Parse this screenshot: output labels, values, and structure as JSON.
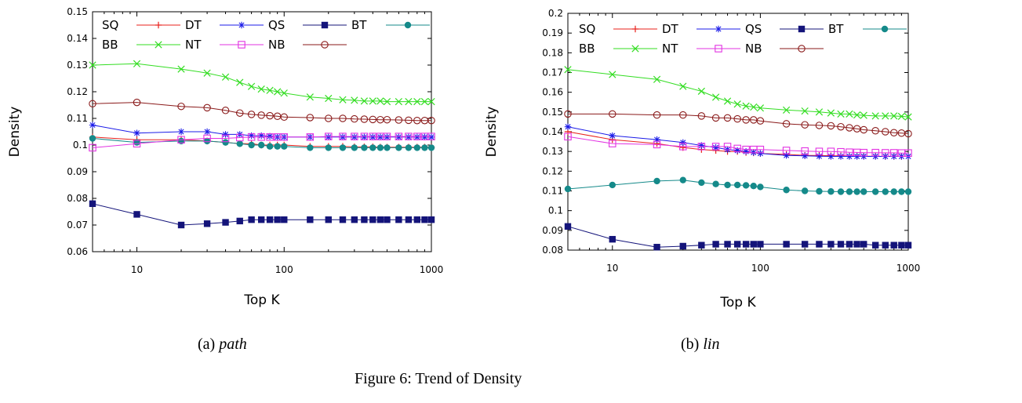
{
  "figure_caption": "Figure 6: Trend of Density",
  "chart_data": [
    {
      "type": "line",
      "subcaption_label": "(a)",
      "subcaption_name": "path",
      "xlabel": "Top K",
      "ylabel": "Density",
      "xscale": "log",
      "xlim": [
        5,
        1000
      ],
      "ylim": [
        0.06,
        0.15
      ],
      "xticks": [
        10,
        100,
        1000
      ],
      "xtick_labels": [
        "10",
        "100",
        "1000"
      ],
      "yticks": [
        0.06,
        0.07,
        0.08,
        0.09,
        0.1,
        0.11,
        0.12,
        0.13,
        0.14,
        0.15
      ],
      "ytick_labels": [
        "0.06",
        "0.07",
        "0.08",
        "0.09",
        "0.1",
        "0.11",
        "0.12",
        "0.13",
        "0.14",
        "0.15"
      ],
      "legend_position": "top",
      "x": [
        5,
        10,
        20,
        30,
        40,
        50,
        60,
        70,
        80,
        90,
        100,
        150,
        200,
        250,
        300,
        350,
        400,
        450,
        500,
        600,
        700,
        800,
        900,
        1000
      ],
      "series": [
        {
          "name": "SQ",
          "color": "#e8201b",
          "marker": "plus",
          "values": [
            0.103,
            0.102,
            0.102,
            0.1015,
            0.101,
            0.1005,
            0.1005,
            0.1,
            0.1,
            0.1,
            0.1,
            0.0995,
            0.0995,
            0.0995,
            0.0993,
            0.0993,
            0.0993,
            0.0992,
            0.0992,
            0.0992,
            0.0992,
            0.0992,
            0.0992,
            0.0992
          ]
        },
        {
          "name": "DT",
          "color": "#1b1be8",
          "marker": "star",
          "values": [
            0.1075,
            0.1045,
            0.105,
            0.105,
            0.104,
            0.104,
            0.1035,
            0.1035,
            0.1033,
            0.103,
            0.103,
            0.103,
            0.103,
            0.103,
            0.103,
            0.103,
            0.103,
            0.103,
            0.103,
            0.103,
            0.103,
            0.103,
            0.103,
            0.103
          ]
        },
        {
          "name": "QS",
          "color": "#14147a",
          "marker": "filled-square",
          "values": [
            0.078,
            0.074,
            0.07,
            0.0705,
            0.071,
            0.0715,
            0.072,
            0.072,
            0.072,
            0.072,
            0.072,
            0.072,
            0.072,
            0.072,
            0.072,
            0.072,
            0.072,
            0.072,
            0.072,
            0.072,
            0.072,
            0.072,
            0.072,
            0.072
          ]
        },
        {
          "name": "BT",
          "color": "#158a8a",
          "marker": "filled-circle",
          "values": [
            0.1025,
            0.101,
            0.1015,
            0.1015,
            0.101,
            0.1005,
            0.1,
            0.1,
            0.0995,
            0.0995,
            0.0995,
            0.099,
            0.099,
            0.099,
            0.099,
            0.099,
            0.099,
            0.099,
            0.099,
            0.099,
            0.099,
            0.099,
            0.099,
            0.099
          ]
        },
        {
          "name": "BB",
          "color": "#33dd22",
          "marker": "x",
          "values": [
            0.13,
            0.1305,
            0.1285,
            0.127,
            0.1255,
            0.1235,
            0.122,
            0.121,
            0.1205,
            0.12,
            0.1195,
            0.118,
            0.1175,
            0.117,
            0.1168,
            0.1165,
            0.1165,
            0.1165,
            0.1163,
            0.1163,
            0.1163,
            0.1163,
            0.1163,
            0.1163
          ]
        },
        {
          "name": "NT",
          "color": "#e233e2",
          "marker": "open-square",
          "values": [
            0.099,
            0.1005,
            0.102,
            0.1025,
            0.1025,
            0.1028,
            0.103,
            0.103,
            0.103,
            0.103,
            0.103,
            0.103,
            0.1032,
            0.1032,
            0.1032,
            0.1032,
            0.1032,
            0.1032,
            0.1032,
            0.1032,
            0.1032,
            0.1032,
            0.1032,
            0.1032
          ]
        },
        {
          "name": "NB",
          "color": "#8a1a1a",
          "marker": "open-circle",
          "values": [
            0.1155,
            0.116,
            0.1145,
            0.114,
            0.113,
            0.112,
            0.1115,
            0.1112,
            0.111,
            0.1108,
            0.1105,
            0.1103,
            0.11,
            0.11,
            0.1098,
            0.1097,
            0.1096,
            0.1095,
            0.1095,
            0.1094,
            0.1093,
            0.1092,
            0.1092,
            0.1092
          ]
        }
      ]
    },
    {
      "type": "line",
      "subcaption_label": "(b)",
      "subcaption_name": "lin",
      "xlabel": "Top K",
      "ylabel": "Density",
      "xscale": "log",
      "xlim": [
        5,
        1000
      ],
      "ylim": [
        0.08,
        0.2
      ],
      "xticks": [
        10,
        100,
        1000
      ],
      "xtick_labels": [
        "10",
        "100",
        "1000"
      ],
      "yticks": [
        0.08,
        0.09,
        0.1,
        0.11,
        0.12,
        0.13,
        0.14,
        0.15,
        0.16,
        0.17,
        0.18,
        0.19,
        0.2
      ],
      "ytick_labels": [
        "0.08",
        "0.09",
        "0.1",
        "0.11",
        "0.12",
        "0.13",
        "0.14",
        "0.15",
        "0.16",
        "0.17",
        "0.18",
        "0.19",
        "0.2"
      ],
      "legend_position": "top",
      "x": [
        5,
        10,
        20,
        30,
        40,
        50,
        60,
        70,
        80,
        90,
        100,
        150,
        200,
        250,
        300,
        350,
        400,
        450,
        500,
        600,
        700,
        800,
        900,
        1000
      ],
      "series": [
        {
          "name": "SQ",
          "color": "#e8201b",
          "marker": "plus",
          "values": [
            0.14,
            0.136,
            0.134,
            0.132,
            0.131,
            0.1305,
            0.13,
            0.13,
            0.1295,
            0.1293,
            0.129,
            0.1285,
            0.128,
            0.128,
            0.1278,
            0.1278,
            0.1277,
            0.1277,
            0.1276,
            0.1276,
            0.1275,
            0.1275,
            0.1275,
            0.1275
          ]
        },
        {
          "name": "DT",
          "color": "#1b1be8",
          "marker": "star",
          "values": [
            0.1425,
            0.138,
            0.136,
            0.1345,
            0.133,
            0.132,
            0.131,
            0.1305,
            0.13,
            0.1295,
            0.129,
            0.128,
            0.1278,
            0.1276,
            0.1275,
            0.1275,
            0.1275,
            0.1275,
            0.1275,
            0.1275,
            0.1275,
            0.1275,
            0.1275,
            0.1275
          ]
        },
        {
          "name": "QS",
          "color": "#14147a",
          "marker": "filled-square",
          "values": [
            0.092,
            0.0855,
            0.0815,
            0.082,
            0.0825,
            0.083,
            0.083,
            0.083,
            0.083,
            0.083,
            0.083,
            0.083,
            0.083,
            0.083,
            0.083,
            0.083,
            0.083,
            0.083,
            0.083,
            0.0825,
            0.0825,
            0.0825,
            0.0825,
            0.0825
          ]
        },
        {
          "name": "BT",
          "color": "#158a8a",
          "marker": "filled-circle",
          "values": [
            0.111,
            0.113,
            0.115,
            0.1155,
            0.1142,
            0.1135,
            0.113,
            0.113,
            0.1128,
            0.1125,
            0.112,
            0.1105,
            0.11,
            0.1098,
            0.1097,
            0.1096,
            0.1096,
            0.1096,
            0.1096,
            0.1096,
            0.1096,
            0.1096,
            0.1096,
            0.1096
          ]
        },
        {
          "name": "BB",
          "color": "#33dd22",
          "marker": "x",
          "values": [
            0.1715,
            0.169,
            0.1665,
            0.163,
            0.1605,
            0.1575,
            0.1555,
            0.154,
            0.153,
            0.1525,
            0.152,
            0.151,
            0.1505,
            0.15,
            0.1495,
            0.149,
            0.149,
            0.1485,
            0.1483,
            0.148,
            0.148,
            0.148,
            0.1478,
            0.1475
          ]
        },
        {
          "name": "NT",
          "color": "#e233e2",
          "marker": "open-square",
          "values": [
            0.1375,
            0.134,
            0.1335,
            0.1325,
            0.1325,
            0.1325,
            0.1325,
            0.1315,
            0.131,
            0.131,
            0.131,
            0.1305,
            0.1302,
            0.13,
            0.13,
            0.1298,
            0.1296,
            0.1295,
            0.1294,
            0.1294,
            0.1293,
            0.1293,
            0.1292,
            0.1292
          ]
        },
        {
          "name": "NB",
          "color": "#8a1a1a",
          "marker": "open-circle",
          "values": [
            0.149,
            0.149,
            0.1485,
            0.1485,
            0.148,
            0.147,
            0.147,
            0.1465,
            0.146,
            0.146,
            0.1455,
            0.144,
            0.1435,
            0.1432,
            0.143,
            0.1425,
            0.142,
            0.1415,
            0.141,
            0.1405,
            0.14,
            0.1395,
            0.1393,
            0.139
          ]
        }
      ]
    }
  ]
}
